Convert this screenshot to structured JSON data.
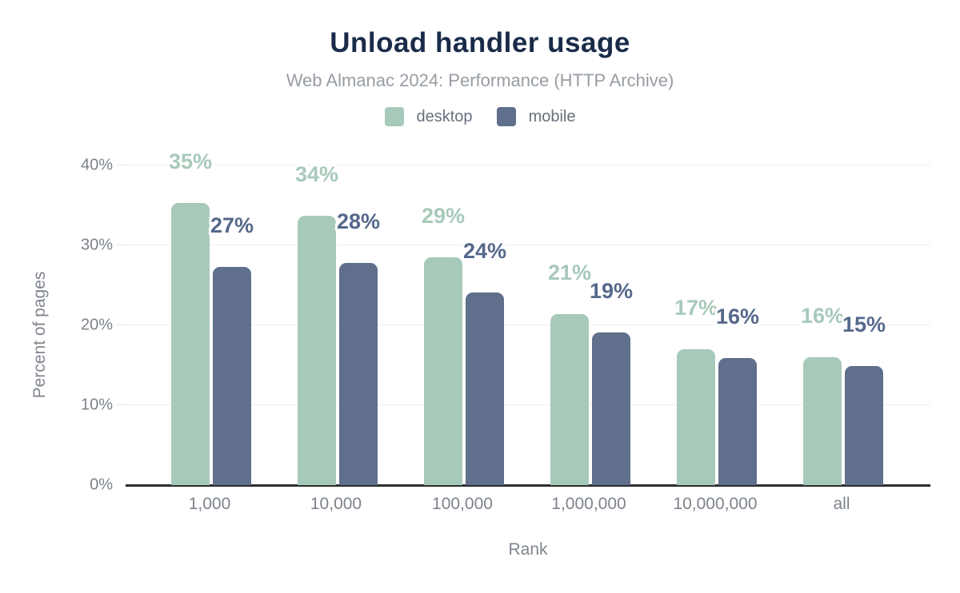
{
  "title": "Unload handler usage",
  "subtitle": "Web Almanac 2024: Performance (HTTP Archive)",
  "colors": {
    "title_text": "#1a2b4a",
    "subtitle_text": "#979da4",
    "axis_text": "#7d838c",
    "axis_line": "#2d2d2d",
    "gridline": "#ededed",
    "desktop": "#a7c9b9",
    "mobile": "#5f6f8c",
    "mobile_label_text": "#56688b"
  },
  "chart_data": {
    "type": "bar",
    "title": "Unload handler usage",
    "subtitle": "Web Almanac 2024: Performance (HTTP Archive)",
    "categories": [
      "1,000",
      "10,000",
      "100,000",
      "1,000,000",
      "10,000,000",
      "all"
    ],
    "series": [
      {
        "name": "desktop",
        "color": "#a7c9b9",
        "values": [
          35,
          34,
          29,
          21,
          17,
          16
        ],
        "labels": [
          "35%",
          "34%",
          "29%",
          "21%",
          "17%",
          "16%"
        ],
        "bar_heights_pct": [
          35.3,
          33.7,
          28.5,
          21.4,
          17.0,
          16.0
        ]
      },
      {
        "name": "mobile",
        "color": "#5f6f8c",
        "values": [
          27,
          28,
          24,
          19,
          16,
          15
        ],
        "labels": [
          "27%",
          "28%",
          "24%",
          "19%",
          "16%",
          "15%"
        ],
        "bar_heights_pct": [
          27.3,
          27.8,
          24.1,
          19.1,
          15.9,
          14.9
        ]
      }
    ],
    "xlabel": "Rank",
    "ylabel": "Percent of pages",
    "ylim": [
      0,
      40
    ],
    "yticks": [
      "0%",
      "10%",
      "20%",
      "30%",
      "40%"
    ],
    "ytick_values": [
      0,
      10,
      20,
      30,
      40
    ],
    "grid": true,
    "legend_position": "top"
  }
}
